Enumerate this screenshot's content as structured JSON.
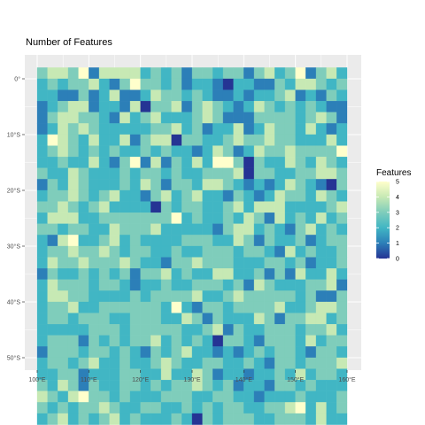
{
  "chart_data": {
    "type": "heatmap",
    "title": "Number of Features",
    "xlabel": "",
    "ylabel": "",
    "x_ticks": [
      "100°E",
      "110°E",
      "120°E",
      "130°E",
      "140°E",
      "150°E",
      "160°E"
    ],
    "y_ticks": [
      "0°",
      "10°S",
      "20°S",
      "30°S",
      "40°S",
      "50°S"
    ],
    "x_range": [
      100,
      160
    ],
    "y_range": [
      -51,
      2
    ],
    "cell_size_degrees": 2,
    "legend": {
      "title": "Features",
      "ticks": [
        "0",
        "1",
        "2",
        "3",
        "4",
        "5"
      ],
      "min": 0,
      "max": 5,
      "position": "right"
    },
    "colorscale": [
      "#253494",
      "#2c7fb8",
      "#41b6c4",
      "#7fcdbb",
      "#c7e9b4",
      "#ffffcc"
    ],
    "panel_background": "#ebebeb",
    "grid": true,
    "grid_values_row_major_north_to_south": [
      [
        3,
        4,
        4,
        3,
        5,
        1,
        4,
        4,
        4,
        4,
        2,
        3,
        2,
        3,
        1,
        3,
        3,
        2,
        3,
        3,
        1,
        3,
        4,
        2,
        3,
        5,
        1,
        3,
        4,
        2
      ],
      [
        2,
        3,
        2,
        3,
        3,
        4,
        2,
        1,
        3,
        5,
        3,
        3,
        2,
        3,
        1,
        2,
        2,
        1,
        0,
        2,
        2,
        1,
        1,
        3,
        2,
        4,
        4,
        3,
        2,
        3
      ],
      [
        2,
        2,
        1,
        1,
        3,
        1,
        2,
        4,
        1,
        1,
        2,
        4,
        3,
        3,
        2,
        3,
        2,
        1,
        1,
        2,
        1,
        2,
        2,
        3,
        4,
        1,
        2,
        1,
        3,
        2
      ],
      [
        1,
        2,
        3,
        4,
        4,
        1,
        2,
        2,
        1,
        4,
        0,
        3,
        3,
        4,
        1,
        3,
        4,
        3,
        2,
        1,
        2,
        4,
        3,
        2,
        3,
        2,
        3,
        2,
        1,
        1
      ],
      [
        1,
        3,
        4,
        4,
        3,
        3,
        2,
        1,
        4,
        2,
        3,
        4,
        2,
        2,
        2,
        3,
        4,
        3,
        1,
        1,
        1,
        3,
        3,
        3,
        3,
        2,
        3,
        4,
        3,
        1
      ],
      [
        1,
        2,
        4,
        3,
        4,
        3,
        2,
        2,
        2,
        2,
        2,
        3,
        3,
        4,
        2,
        3,
        1,
        2,
        2,
        4,
        1,
        2,
        4,
        3,
        3,
        2,
        4,
        2,
        1,
        2
      ],
      [
        2,
        5,
        4,
        3,
        2,
        4,
        2,
        2,
        4,
        1,
        3,
        4,
        4,
        0,
        3,
        3,
        2,
        2,
        3,
        4,
        3,
        3,
        4,
        3,
        3,
        2,
        2,
        2,
        4,
        2
      ],
      [
        2,
        3,
        4,
        3,
        2,
        3,
        2,
        3,
        2,
        2,
        3,
        2,
        3,
        2,
        2,
        1,
        2,
        4,
        3,
        1,
        2,
        4,
        3,
        3,
        4,
        3,
        3,
        3,
        3,
        5
      ],
      [
        2,
        2,
        3,
        2,
        2,
        4,
        2,
        1,
        3,
        5,
        1,
        4,
        1,
        3,
        2,
        4,
        2,
        5,
        5,
        3,
        0,
        3,
        2,
        2,
        4,
        3,
        2,
        4,
        3,
        2
      ],
      [
        3,
        2,
        2,
        4,
        3,
        2,
        2,
        2,
        3,
        2,
        3,
        3,
        2,
        3,
        2,
        2,
        3,
        3,
        3,
        4,
        0,
        3,
        3,
        2,
        2,
        3,
        3,
        4,
        4,
        3
      ],
      [
        1,
        3,
        2,
        4,
        3,
        2,
        2,
        2,
        3,
        2,
        4,
        3,
        1,
        3,
        3,
        2,
        4,
        4,
        3,
        2,
        1,
        2,
        1,
        2,
        4,
        3,
        2,
        1,
        0,
        3
      ],
      [
        2,
        3,
        3,
        4,
        3,
        2,
        3,
        4,
        2,
        2,
        1,
        3,
        4,
        2,
        3,
        4,
        2,
        2,
        1,
        3,
        2,
        1,
        2,
        4,
        3,
        3,
        2,
        4,
        3,
        2
      ],
      [
        3,
        3,
        4,
        3,
        2,
        3,
        4,
        2,
        2,
        2,
        2,
        0,
        3,
        2,
        3,
        3,
        2,
        2,
        3,
        4,
        2,
        4,
        4,
        4,
        2,
        2,
        2,
        2,
        3,
        4
      ],
      [
        2,
        4,
        4,
        4,
        2,
        2,
        3,
        3,
        3,
        3,
        3,
        3,
        3,
        5,
        2,
        3,
        2,
        2,
        3,
        2,
        4,
        3,
        1,
        4,
        2,
        3,
        2,
        4,
        2,
        3
      ],
      [
        3,
        3,
        2,
        3,
        3,
        2,
        2,
        4,
        3,
        3,
        3,
        4,
        2,
        2,
        2,
        2,
        2,
        1,
        3,
        4,
        4,
        2,
        3,
        2,
        1,
        3,
        4,
        2,
        3,
        2
      ],
      [
        2,
        1,
        4,
        5,
        2,
        2,
        3,
        4,
        2,
        3,
        2,
        2,
        2,
        2,
        3,
        3,
        3,
        2,
        2,
        4,
        3,
        1,
        3,
        2,
        2,
        3,
        1,
        2,
        3,
        3
      ],
      [
        2,
        3,
        3,
        4,
        3,
        3,
        4,
        3,
        2,
        3,
        3,
        2,
        2,
        3,
        2,
        2,
        3,
        3,
        3,
        2,
        3,
        3,
        2,
        1,
        4,
        2,
        3,
        2,
        2,
        3
      ],
      [
        2,
        4,
        3,
        3,
        4,
        3,
        3,
        3,
        4,
        3,
        2,
        2,
        1,
        3,
        3,
        4,
        3,
        3,
        3,
        2,
        2,
        2,
        3,
        3,
        2,
        3,
        1,
        2,
        2,
        3
      ],
      [
        1,
        3,
        2,
        2,
        3,
        2,
        3,
        2,
        3,
        1,
        3,
        3,
        4,
        2,
        3,
        2,
        2,
        4,
        4,
        2,
        2,
        3,
        1,
        3,
        1,
        4,
        2,
        2,
        4,
        2
      ],
      [
        2,
        4,
        3,
        3,
        3,
        2,
        3,
        3,
        2,
        1,
        2,
        2,
        3,
        2,
        2,
        3,
        3,
        3,
        2,
        3,
        1,
        4,
        3,
        2,
        2,
        2,
        3,
        3,
        4,
        1
      ],
      [
        2,
        4,
        4,
        3,
        3,
        2,
        2,
        2,
        2,
        3,
        2,
        3,
        3,
        3,
        3,
        4,
        2,
        2,
        3,
        4,
        3,
        3,
        3,
        3,
        3,
        2,
        3,
        1,
        1,
        3
      ],
      [
        2,
        3,
        3,
        4,
        2,
        2,
        3,
        3,
        3,
        3,
        3,
        3,
        2,
        5,
        2,
        1,
        3,
        3,
        2,
        3,
        3,
        3,
        3,
        4,
        2,
        2,
        3,
        4,
        4,
        3
      ],
      [
        2,
        3,
        3,
        2,
        3,
        3,
        3,
        2,
        2,
        3,
        3,
        3,
        2,
        2,
        4,
        3,
        1,
        3,
        2,
        2,
        2,
        4,
        3,
        1,
        3,
        3,
        4,
        4,
        2,
        3
      ],
      [
        2,
        2,
        2,
        2,
        2,
        3,
        3,
        3,
        2,
        3,
        3,
        3,
        3,
        3,
        2,
        2,
        3,
        4,
        1,
        3,
        2,
        2,
        3,
        3,
        3,
        2,
        3,
        3,
        4,
        2
      ],
      [
        2,
        3,
        3,
        3,
        1,
        3,
        2,
        3,
        2,
        3,
        3,
        4,
        2,
        3,
        2,
        3,
        2,
        0,
        3,
        3,
        2,
        1,
        3,
        3,
        3,
        2,
        4,
        2,
        3,
        3
      ],
      [
        1,
        3,
        3,
        3,
        2,
        3,
        3,
        2,
        3,
        2,
        1,
        3,
        2,
        3,
        4,
        2,
        2,
        1,
        2,
        1,
        2,
        3,
        2,
        3,
        3,
        2,
        1,
        3,
        3,
        2
      ],
      [
        2,
        3,
        3,
        2,
        3,
        4,
        2,
        2,
        3,
        2,
        2,
        3,
        4,
        3,
        2,
        2,
        3,
        3,
        2,
        2,
        3,
        2,
        1,
        3,
        3,
        2,
        3,
        3,
        3,
        4
      ],
      [
        2,
        2,
        3,
        3,
        1,
        2,
        2,
        2,
        3,
        3,
        2,
        2,
        4,
        2,
        2,
        4,
        3,
        1,
        2,
        2,
        1,
        2,
        2,
        3,
        2,
        4,
        2,
        3,
        3,
        2
      ],
      [
        3,
        2,
        4,
        3,
        1,
        3,
        2,
        2,
        3,
        3,
        2,
        3,
        2,
        3,
        3,
        4,
        3,
        2,
        3,
        1,
        2,
        2,
        1,
        3,
        3,
        2,
        3,
        2,
        2,
        2
      ],
      [
        4,
        3,
        2,
        4,
        5,
        3,
        3,
        2,
        3,
        2,
        2,
        2,
        3,
        3,
        3,
        2,
        2,
        3,
        3,
        2,
        2,
        1,
        2,
        2,
        2,
        3,
        2,
        2,
        2,
        3
      ],
      [
        3,
        2,
        3,
        2,
        3,
        3,
        4,
        3,
        2,
        2,
        3,
        3,
        2,
        2,
        3,
        2,
        3,
        2,
        3,
        3,
        2,
        2,
        3,
        3,
        4,
        5,
        2,
        4,
        2,
        3
      ],
      [
        2,
        3,
        4,
        2,
        3,
        2,
        3,
        4,
        2,
        3,
        2,
        2,
        2,
        3,
        2,
        0,
        3,
        2,
        3,
        3,
        3,
        2,
        2,
        3,
        3,
        3,
        2,
        4,
        2,
        2
      ]
    ]
  }
}
